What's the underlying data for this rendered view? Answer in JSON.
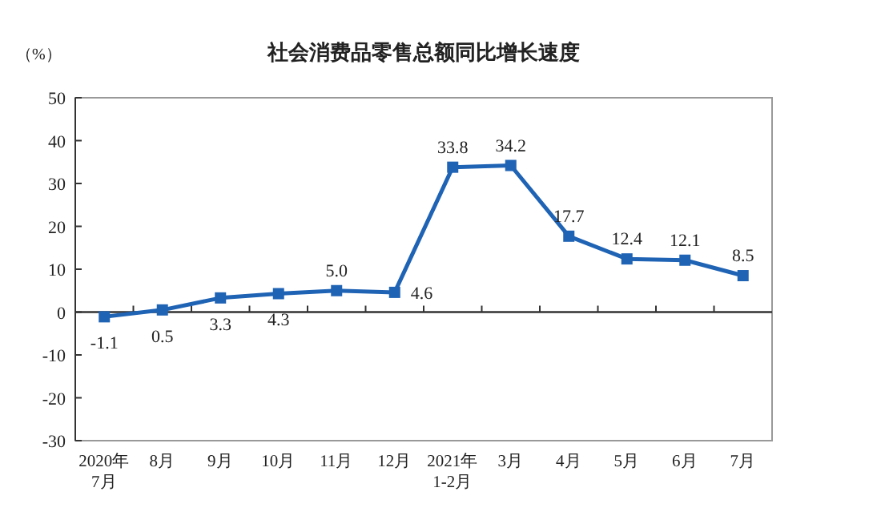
{
  "chart_data": {
    "type": "line",
    "title": "社会消费品零售总额同比增长速度",
    "ylabel": "（%）",
    "categories": [
      "2020年\n7月",
      "8月",
      "9月",
      "10月",
      "11月",
      "12月",
      "2021年\n1-2月",
      "3月",
      "4月",
      "5月",
      "6月",
      "7月"
    ],
    "series": [
      {
        "color": "#1f63b5",
        "values": [
          -1.1,
          0.5,
          3.3,
          4.3,
          5.0,
          4.6,
          33.8,
          34.2,
          17.7,
          12.4,
          12.1,
          8.5
        ]
      }
    ],
    "value_labels": [
      "-1.1",
      "0.5",
      "3.3",
      "4.3",
      "5.0",
      "4.6",
      "33.8",
      "34.2",
      "17.7",
      "12.4",
      "12.1",
      "8.5"
    ],
    "ylim": [
      -30,
      50
    ],
    "yticks": [
      -30,
      -20,
      -10,
      0,
      10,
      20,
      30,
      40,
      50
    ],
    "marker": "square",
    "line_style": "solid"
  }
}
